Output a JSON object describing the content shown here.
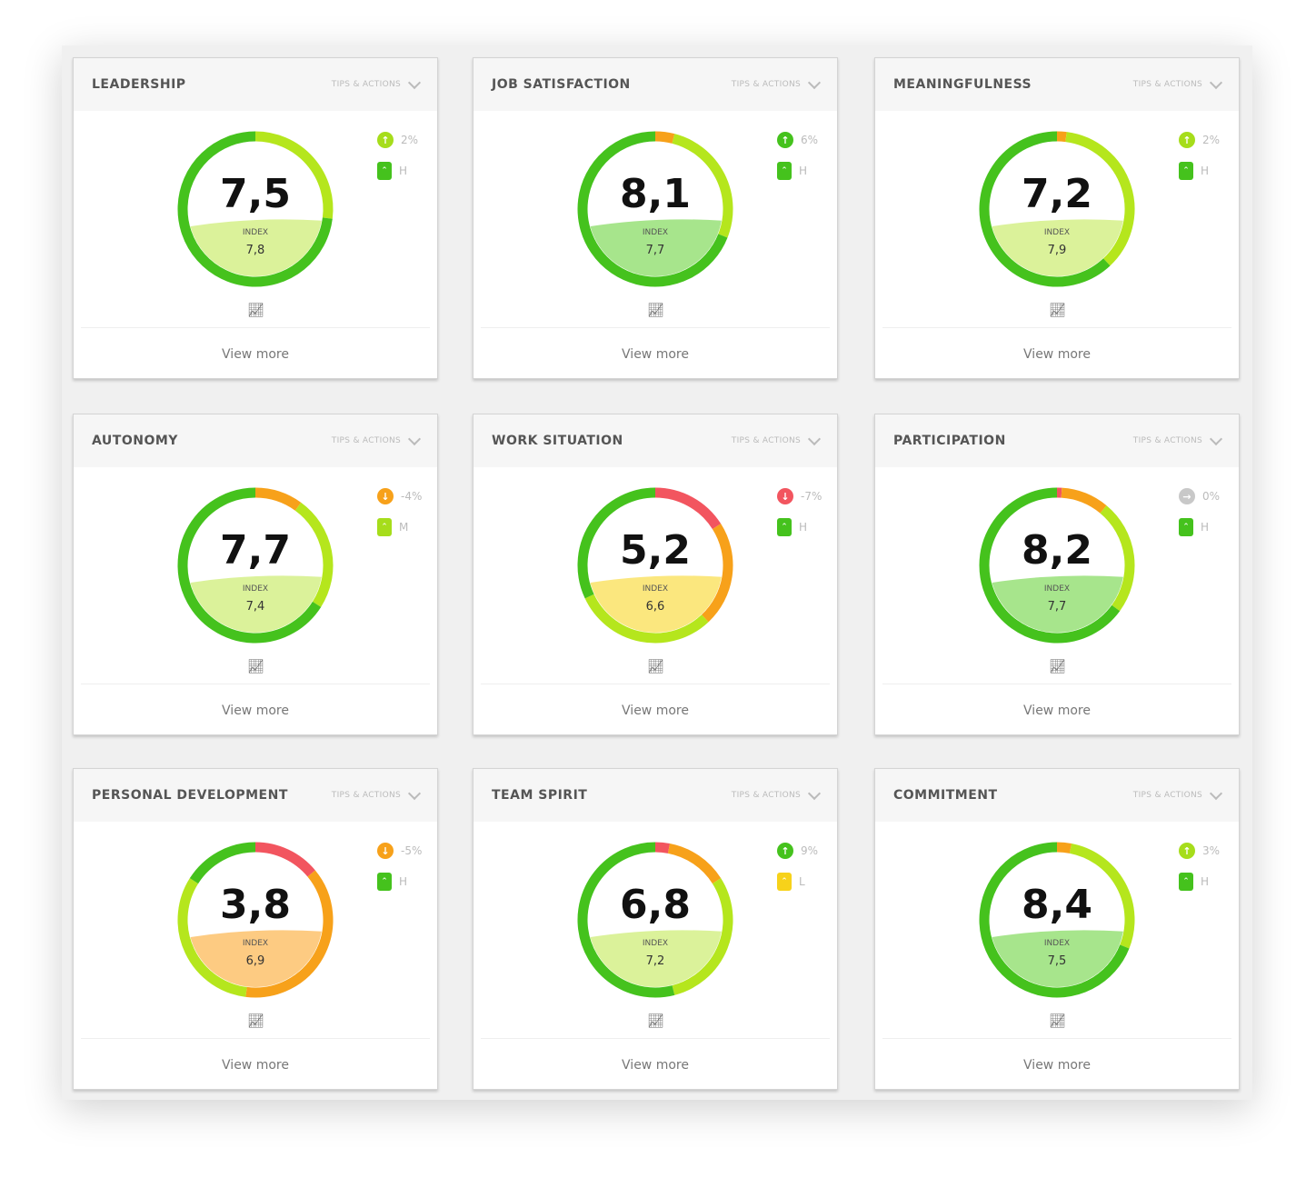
{
  "tips_label": "TIPS & ACTIONS",
  "view_more_label": "View more",
  "index_label": "INDEX",
  "colors": {
    "red": "#f2555f",
    "orange": "#f7a11a",
    "light_green": "#b5e61d",
    "dark_green": "#45c21d"
  },
  "cards": [
    {
      "title": "LEADERSHIP",
      "score": "7,5",
      "index": "7,8",
      "trend": "up",
      "trend_color": "#a6dd1b",
      "change": "2%",
      "level": "H",
      "level_color": "#45c21d",
      "fill": "#dbf29a",
      "segments": [
        [
          "light_green",
          0.27
        ],
        [
          "dark_green",
          0.73
        ]
      ]
    },
    {
      "title": "JOB SATISFACTION",
      "score": "8,1",
      "index": "7,7",
      "trend": "up",
      "trend_color": "#45c21d",
      "change": "6%",
      "level": "H",
      "level_color": "#45c21d",
      "fill": "#a7e58c",
      "segments": [
        [
          "orange",
          0.04
        ],
        [
          "light_green",
          0.27
        ],
        [
          "dark_green",
          0.69
        ]
      ]
    },
    {
      "title": "MEANINGFULNESS",
      "score": "7,2",
      "index": "7,9",
      "trend": "up",
      "trend_color": "#a6dd1b",
      "change": "2%",
      "level": "H",
      "level_color": "#45c21d",
      "fill": "#dbf29a",
      "segments": [
        [
          "orange",
          0.02
        ],
        [
          "light_green",
          0.36
        ],
        [
          "dark_green",
          0.62
        ]
      ]
    },
    {
      "title": "AUTONOMY",
      "score": "7,7",
      "index": "7,4",
      "trend": "down",
      "trend_color": "#f7a11a",
      "change": "-4%",
      "level": "M",
      "level_color": "#a6dd1b",
      "fill": "#dbf29a",
      "segments": [
        [
          "orange",
          0.1
        ],
        [
          "light_green",
          0.24
        ],
        [
          "dark_green",
          0.66
        ]
      ]
    },
    {
      "title": "WORK SITUATION",
      "score": "5,2",
      "index": "6,6",
      "trend": "down",
      "trend_color": "#f2555f",
      "change": "-7%",
      "level": "H",
      "level_color": "#45c21d",
      "fill": "#fbe77e",
      "segments": [
        [
          "red",
          0.16
        ],
        [
          "orange",
          0.22
        ],
        [
          "light_green",
          0.3
        ],
        [
          "dark_green",
          0.32
        ]
      ]
    },
    {
      "title": "PARTICIPATION",
      "score": "8,2",
      "index": "7,7",
      "trend": "neutral",
      "trend_color": "#c8c8c8",
      "change": "0%",
      "level": "H",
      "level_color": "#45c21d",
      "fill": "#a7e58c",
      "segments": [
        [
          "red",
          0.01
        ],
        [
          "orange",
          0.1
        ],
        [
          "light_green",
          0.24
        ],
        [
          "dark_green",
          0.65
        ]
      ]
    },
    {
      "title": "PERSONAL DEVELOPMENT",
      "score": "3,8",
      "index": "6,9",
      "trend": "down",
      "trend_color": "#f7a11a",
      "change": "-5%",
      "level": "H",
      "level_color": "#45c21d",
      "fill": "#fdcb82",
      "segments": [
        [
          "red",
          0.14
        ],
        [
          "orange",
          0.38
        ],
        [
          "light_green",
          0.32
        ],
        [
          "dark_green",
          0.16
        ]
      ]
    },
    {
      "title": "TEAM SPIRIT",
      "score": "6,8",
      "index": "7,2",
      "trend": "up",
      "trend_color": "#45c21d",
      "change": "9%",
      "level": "L",
      "level_color": "#f7d21a",
      "fill": "#dbf29a",
      "segments": [
        [
          "red",
          0.03
        ],
        [
          "orange",
          0.13
        ],
        [
          "light_green",
          0.3
        ],
        [
          "dark_green",
          0.54
        ]
      ]
    },
    {
      "title": "COMMITMENT",
      "score": "8,4",
      "index": "7,5",
      "trend": "up",
      "trend_color": "#a6dd1b",
      "change": "3%",
      "level": "H",
      "level_color": "#45c21d",
      "fill": "#a7e58c",
      "segments": [
        [
          "orange",
          0.03
        ],
        [
          "light_green",
          0.28
        ],
        [
          "dark_green",
          0.69
        ]
      ]
    }
  ]
}
